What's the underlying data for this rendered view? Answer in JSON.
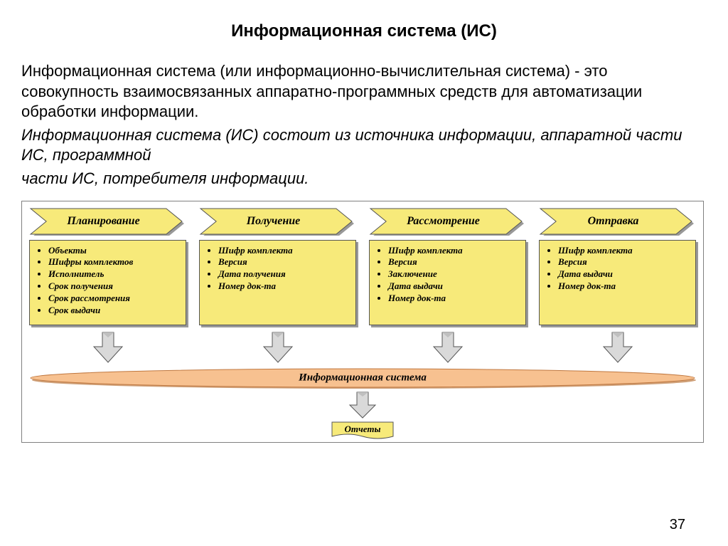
{
  "title": "Информационная система (ИС)",
  "paragraph1": "Информационная система (или информационно-вычислительная система) - это совокупность взаимосвязанных аппаратно-программных средств для автоматизации обработки информации.",
  "paragraph2": "Информационная система (ИС) состоит из источника информации, аппаратной части ИС, программной",
  "paragraph3": "части ИС, потребителя информации.",
  "diagram": {
    "type": "flowchart",
    "background_color": "#ffffff",
    "border_color": "#808080",
    "chevron": {
      "fill": "#f7ea7a",
      "stroke": "#555555",
      "shadow": "#999999",
      "font_family": "Times New Roman",
      "font_style": "italic",
      "font_weight": "bold",
      "label_fontsize": 16
    },
    "box": {
      "fill": "#f7ea7a",
      "stroke": "#555555",
      "shadow": "#999999",
      "item_fontsize": 13
    },
    "arrow": {
      "fill": "#d9d9d9",
      "fill_dark": "#bfbfbf",
      "stroke": "#555555"
    },
    "system_bar": {
      "fill": "#f7c190",
      "stroke": "#c07840",
      "shadow": "#cfa078",
      "label": "Информационная система",
      "label_fontsize": 15
    },
    "report": {
      "fill": "#f7ea7a",
      "stroke": "#555555",
      "label": "Отчеты",
      "label_fontsize": 13
    },
    "stages": [
      {
        "label": "Планирование",
        "items": [
          "Объекты",
          "Шифры комплектов",
          "Исполнитель",
          "Срок получения",
          "Срок рассмотрения",
          "Срок выдачи"
        ]
      },
      {
        "label": "Получение",
        "items": [
          "Шифр комплекта",
          "Версия",
          "Дата получения",
          "Номер док-та"
        ]
      },
      {
        "label": "Рассмотрение",
        "items": [
          "Шифр комплекта",
          "Версия",
          "Заключение",
          "Дата выдачи",
          "Номер док-та"
        ]
      },
      {
        "label": "Отправка",
        "items": [
          "Шифр комплекта",
          "Версия",
          "Дата выдачи",
          "Номер док-та"
        ]
      }
    ]
  },
  "page_number": "37"
}
